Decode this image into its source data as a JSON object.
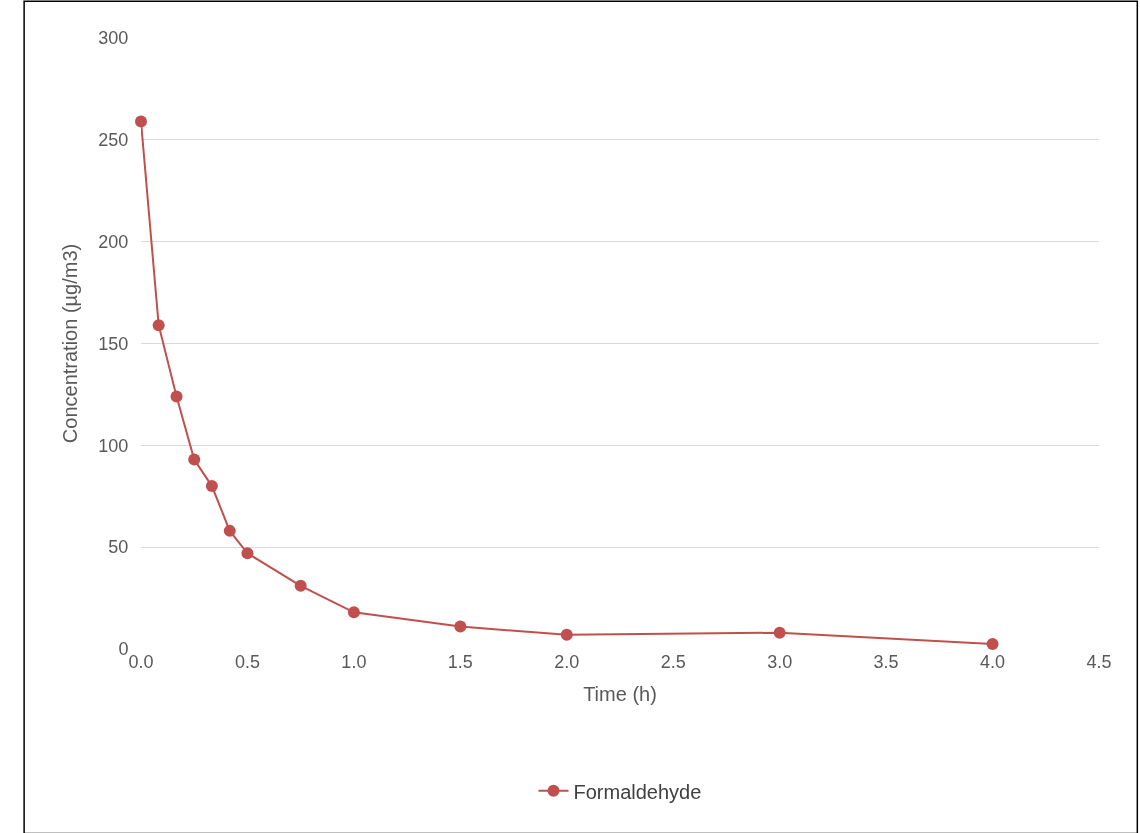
{
  "chart_data": {
    "type": "line",
    "xlabel": "Time (h)",
    "ylabel": "Concentration (µg/m3)",
    "x": [
      0,
      0.083,
      0.167,
      0.25,
      0.333,
      0.417,
      0.5,
      0.75,
      1.0,
      1.5,
      2.0,
      3.0,
      4.0
    ],
    "series": [
      {
        "name": "Formaldehyde",
        "color": "#c0504d",
        "values": [
          259,
          159,
          124,
          93,
          80,
          58,
          47,
          31,
          18,
          11,
          7,
          8,
          2.5
        ]
      }
    ],
    "xlim": [
      0,
      4.5
    ],
    "xticks": [
      {
        "value": 0,
        "label": "0.0"
      },
      {
        "value": 0.5,
        "label": "0.5"
      },
      {
        "value": 1,
        "label": "1.0"
      },
      {
        "value": 1.5,
        "label": "1.5"
      },
      {
        "value": 2,
        "label": "2.0"
      },
      {
        "value": 2.5,
        "label": "2.5"
      },
      {
        "value": 3,
        "label": "3.0"
      },
      {
        "value": 3.5,
        "label": "3.5"
      },
      {
        "value": 4,
        "label": "4.0"
      },
      {
        "value": 4.5,
        "label": "4.5"
      }
    ],
    "ylim": [
      0,
      300
    ],
    "yticks": [
      0,
      50,
      100,
      150,
      200,
      250,
      300
    ],
    "grid": "y",
    "legend": "bottom",
    "marker": "circle",
    "line_style": "solid"
  }
}
